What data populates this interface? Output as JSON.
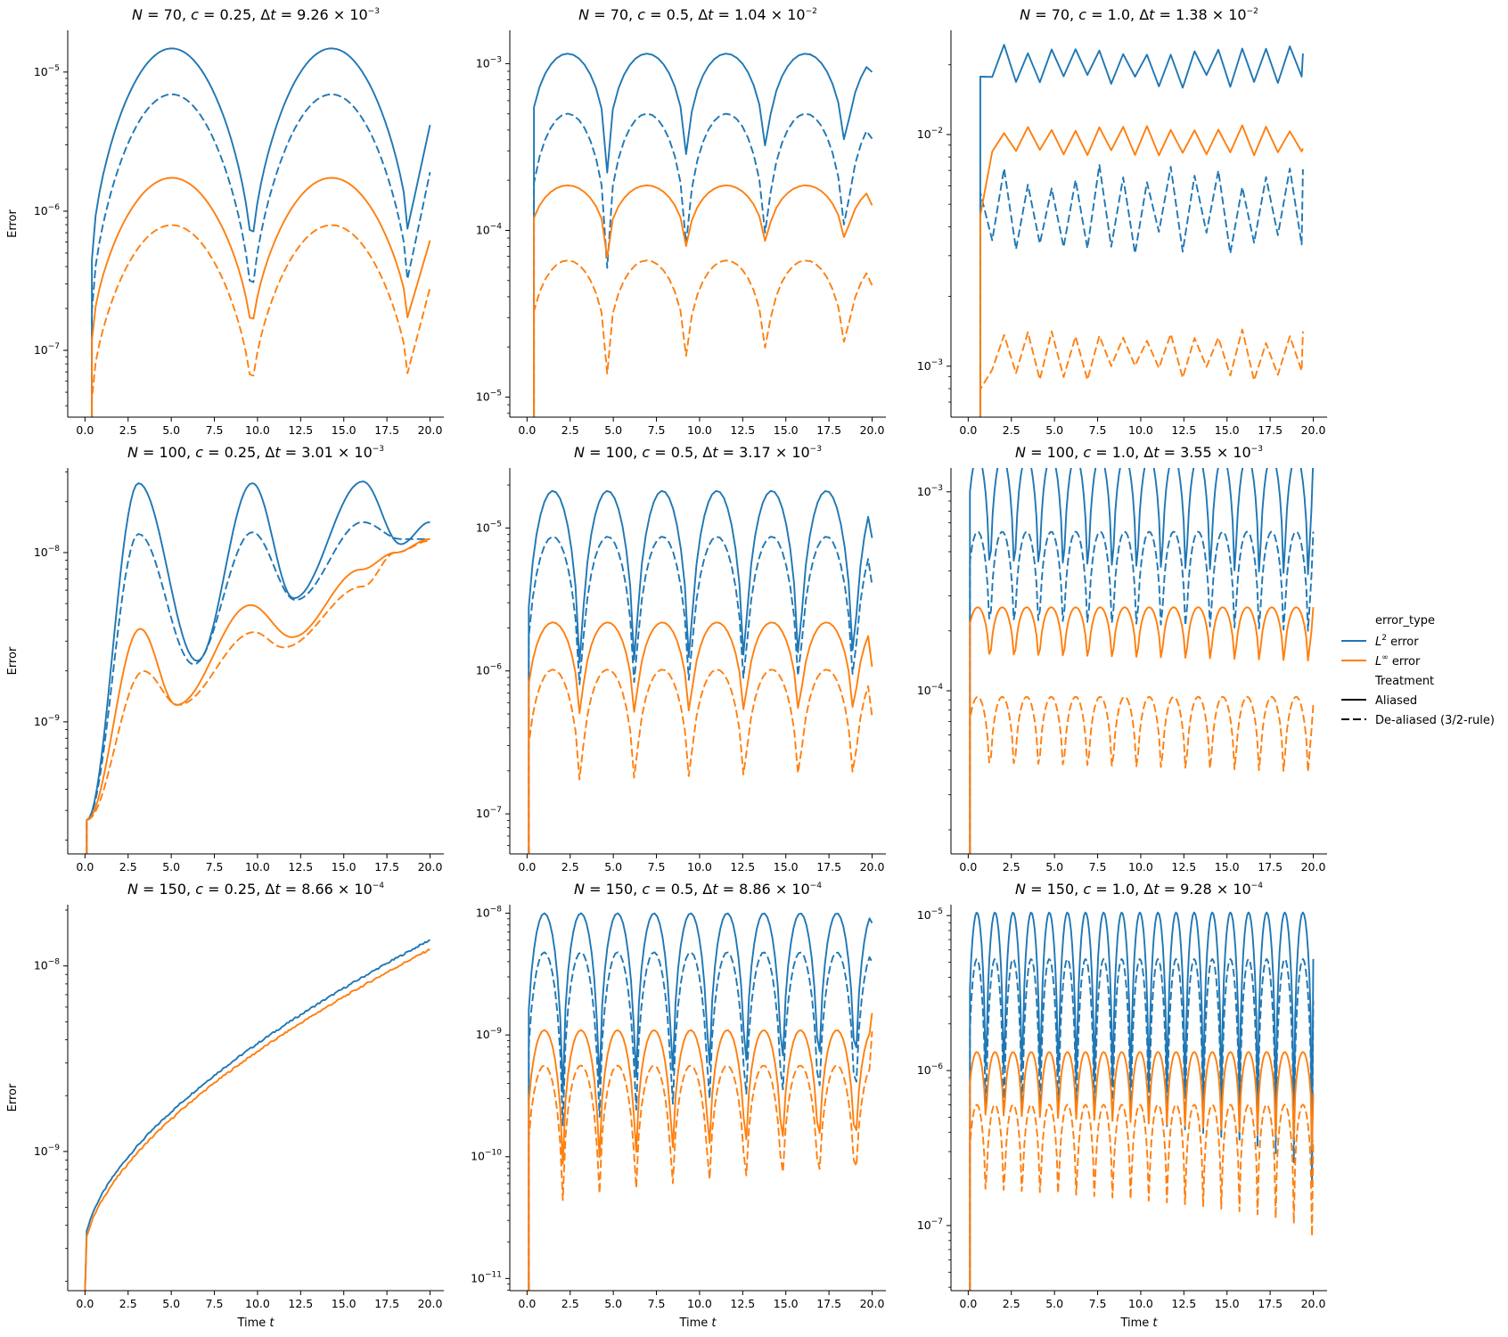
{
  "colors": {
    "l2": "#1f77b4",
    "linf": "#ff7f0e",
    "axis": "#000000"
  },
  "legend": {
    "hue_title": "error_type",
    "hue_entries": [
      {
        "label": "L",
        "sup": "2",
        "rest": " error",
        "color": "#1f77b4"
      },
      {
        "label": "L",
        "sup": "∞",
        "rest": " error",
        "color": "#ff7f0e"
      }
    ],
    "style_title": "Treatment",
    "style_entries": [
      {
        "label": "Aliased",
        "dash": "solid"
      },
      {
        "label": "De-aliased (3/2-rule)",
        "dash": "dashed"
      }
    ]
  },
  "chart_data": [
    {
      "type": "line",
      "title": {
        "N": "70",
        "c": "0.25",
        "mant": "9.26",
        "exp": "−3"
      },
      "ylabel": "Error",
      "xlabel": "",
      "xlim": [
        -1,
        20.8
      ],
      "ylog": [
        -7.48,
        -4.7
      ],
      "yticks": [
        -7,
        -6,
        -5
      ],
      "xticks": [
        0,
        2.5,
        5,
        7.5,
        10,
        12.5,
        15,
        17.5,
        20
      ],
      "mode": "arch",
      "t0": 0.4,
      "period": 9.26,
      "dip": [
        9.2,
        18.3
      ],
      "series": [
        {
          "name": "L2 error",
          "treatment": "Aliased",
          "lpeak": -4.83,
          "ldip": -6.35,
          "lend": -5.38
        },
        {
          "name": "L2 error",
          "treatment": "De-aliased (3/2-rule)",
          "lpeak": -5.16,
          "ldip": -6.72,
          "lend": -5.72
        },
        {
          "name": "Linf error",
          "treatment": "Aliased",
          "lpeak": -5.76,
          "ldip": -6.93,
          "lend": -6.21
        },
        {
          "name": "Linf error",
          "treatment": "De-aliased (3/2-rule)",
          "lpeak": -6.1,
          "ldip": -7.35,
          "lend": -6.55
        }
      ]
    },
    {
      "type": "line",
      "title": {
        "N": "70",
        "c": "0.5",
        "mant": "1.04",
        "exp": "−2"
      },
      "ylabel": "",
      "xlabel": "",
      "xlim": [
        -1,
        20.8
      ],
      "ylog": [
        -5.12,
        -2.8
      ],
      "yticks": [
        -5,
        -4,
        -3
      ],
      "xticks": [
        0,
        2.5,
        5,
        7.5,
        10,
        12.5,
        15,
        17.5,
        20
      ],
      "mode": "osc",
      "t0": 0.4,
      "period": 4.6,
      "phase": 2.35,
      "series": [
        {
          "name": "L2 error",
          "treatment": "Aliased",
          "hi": -2.94,
          "lo": -3.75,
          "lend": -3.05
        },
        {
          "name": "L2 error",
          "treatment": "De-aliased (3/2-rule)",
          "hi": -3.3,
          "lo": -4.35,
          "lend": -3.45
        },
        {
          "name": "Linf error",
          "treatment": "Aliased",
          "hi": -3.73,
          "lo": -4.22,
          "lend": -3.85
        },
        {
          "name": "Linf error",
          "treatment": "De-aliased (3/2-rule)",
          "hi": -4.18,
          "lo": -4.95,
          "lend": -4.33
        }
      ]
    },
    {
      "type": "line",
      "title": {
        "N": "70",
        "c": "1.0",
        "mant": "1.38",
        "exp": "−2"
      },
      "ylabel": "",
      "xlabel": "",
      "xlim": [
        -1,
        20.8
      ],
      "ylog": [
        -3.22,
        -1.55
      ],
      "yticks": [
        -3,
        -2
      ],
      "xticks": [
        0,
        2.5,
        5,
        7.5,
        10,
        12.5,
        15,
        17.5,
        20
      ],
      "mode": "zig",
      "t0": 0.7,
      "step": 0.69,
      "series": [
        {
          "name": "L2 error",
          "treatment": "Aliased",
          "base": -1.7,
          "amp": 0.07,
          "start": -1.75,
          "end": -1.65
        },
        {
          "name": "L2 error",
          "treatment": "De-aliased (3/2-rule)",
          "base": -2.32,
          "amp": 0.14,
          "start": -2.25,
          "end": -2.15
        },
        {
          "name": "Linf error",
          "treatment": "Aliased",
          "base": -2.03,
          "amp": 0.05,
          "start": -2.35,
          "end": -2.06
        },
        {
          "name": "Linf error",
          "treatment": "De-aliased (3/2-rule)",
          "base": -2.95,
          "amp": 0.08,
          "start": -3.1,
          "end": -2.85
        }
      ]
    },
    {
      "type": "line",
      "title": {
        "N": "100",
        "c": "0.25",
        "mant": "3.01",
        "exp": "−3"
      },
      "ylabel": "Error",
      "xlabel": "",
      "xlim": [
        -1,
        20.8
      ],
      "ylog": [
        -9.78,
        -7.5
      ],
      "yticks": [
        -9,
        -8
      ],
      "xticks": [
        0,
        2.5,
        5,
        7.5,
        10,
        12.5,
        15,
        17.5,
        20
      ],
      "mode": "grow",
      "series": [
        {
          "name": "L2 error",
          "treatment": "Aliased",
          "peaks": [
            [
              3.1,
              -7.59
            ],
            [
              9.7,
              -7.59
            ],
            [
              16.1,
              -7.58
            ]
          ],
          "dips": [
            [
              6.5,
              -8.64
            ],
            [
              12.1,
              -8.27
            ],
            [
              18.3,
              -7.95
            ]
          ],
          "lend": -7.82
        },
        {
          "name": "L2 error",
          "treatment": "De-aliased (3/2-rule)",
          "peaks": [
            [
              3.1,
              -7.89
            ],
            [
              9.7,
              -7.88
            ],
            [
              16.1,
              -7.82
            ]
          ],
          "dips": [
            [
              6.3,
              -8.66
            ],
            [
              12.2,
              -8.28
            ],
            [
              18.3,
              -7.92
            ]
          ],
          "lend": -7.92
        },
        {
          "name": "Linf error",
          "treatment": "Aliased",
          "peaks": [
            [
              3.2,
              -8.45
            ],
            [
              9.6,
              -8.31
            ],
            [
              16.0,
              -8.1
            ]
          ],
          "dips": [
            [
              5.3,
              -8.9
            ],
            [
              12.0,
              -8.5
            ],
            [
              18.0,
              -8.0
            ]
          ],
          "lend": -7.92
        },
        {
          "name": "Linf error",
          "treatment": "De-aliased (3/2-rule)",
          "peaks": [
            [
              3.4,
              -8.7
            ],
            [
              9.8,
              -8.47
            ],
            [
              16.1,
              -8.2
            ]
          ],
          "dips": [
            [
              5.4,
              -8.9
            ],
            [
              11.5,
              -8.56
            ],
            [
              18.0,
              -8.0
            ]
          ],
          "lend": -7.93
        }
      ]
    },
    {
      "type": "line",
      "title": {
        "N": "100",
        "c": "0.5",
        "mant": "3.17",
        "exp": "−3"
      },
      "ylabel": "",
      "xlabel": "",
      "xlim": [
        -1,
        20.8
      ],
      "ylog": [
        -7.28,
        -4.58
      ],
      "yticks": [
        -7,
        -6,
        -5
      ],
      "xticks": [
        0,
        2.5,
        5,
        7.5,
        10,
        12.5,
        15,
        17.5,
        20
      ],
      "mode": "osc",
      "t0": 0.1,
      "period": 3.17,
      "phase": 1.5,
      "series": [
        {
          "name": "L2 error",
          "treatment": "Aliased",
          "hi": -4.74,
          "lo": -6.55,
          "lend": -5.07
        },
        {
          "name": "L2 error",
          "treatment": "De-aliased (3/2-rule)",
          "hi": -5.06,
          "lo": -6.62,
          "lend": -5.4
        },
        {
          "name": "Linf error",
          "treatment": "Aliased",
          "hi": -5.66,
          "lo": -6.62,
          "lend": -5.97
        },
        {
          "name": "Linf error",
          "treatment": "De-aliased (3/2-rule)",
          "hi": -5.99,
          "lo": -7.15,
          "lend": -6.32
        }
      ]
    },
    {
      "type": "line",
      "title": {
        "N": "100",
        "c": "1.0",
        "mant": "3.55",
        "exp": "−3"
      },
      "ylabel": "",
      "xlabel": "",
      "xlim": [
        -1,
        20.8
      ],
      "ylog": [
        -4.82,
        -2.88
      ],
      "yticks": [
        -4,
        -3
      ],
      "xticks": [
        0,
        2.5,
        5,
        7.5,
        10,
        12.5,
        15,
        17.5,
        20
      ],
      "mode": "osc",
      "t0": 0.1,
      "period": 1.42,
      "phase": 0.55,
      "series": [
        {
          "name": "L2 error",
          "treatment": "Aliased",
          "hi": -2.82,
          "lo": -3.75,
          "lend": -2.82
        },
        {
          "name": "L2 error",
          "treatment": "De-aliased (3/2-rule)",
          "hi": -3.2,
          "lo": -3.98,
          "lend": -3.2
        },
        {
          "name": "Linf error",
          "treatment": "Aliased",
          "hi": -3.58,
          "lo": -4.0,
          "lend": -3.58
        },
        {
          "name": "Linf error",
          "treatment": "De-aliased (3/2-rule)",
          "hi": -4.03,
          "lo": -4.62,
          "lend": -4.07
        }
      ]
    },
    {
      "type": "line",
      "title": {
        "N": "150",
        "c": "0.25",
        "mant": "8.66",
        "exp": "−4"
      },
      "ylabel": "Error",
      "xlabel": "Time t",
      "xlim": [
        -1,
        20.8
      ],
      "ylog": [
        -9.75,
        -7.67
      ],
      "yticks": [
        -9,
        -8
      ],
      "xticks": [
        0,
        2.5,
        5,
        7.5,
        10,
        12.5,
        15,
        17.5,
        20
      ],
      "mode": "sqrt",
      "series": [
        {
          "name": "L2 error",
          "treatment": "Aliased",
          "a": -9.7,
          "b": -9.5,
          "c": -7.86
        },
        {
          "name": "Linf error",
          "treatment": "Aliased",
          "a": -9.72,
          "b": -9.53,
          "c": -7.91
        }
      ]
    },
    {
      "type": "line",
      "title": {
        "N": "150",
        "c": "0.5",
        "mant": "8.86",
        "exp": "−4"
      },
      "ylabel": "",
      "xlabel": "Time t",
      "xlim": [
        -1,
        20.8
      ],
      "ylog": [
        -11.1,
        -7.93
      ],
      "yticks": [
        -11,
        -10,
        -9,
        -8
      ],
      "xticks": [
        0,
        2.5,
        5,
        7.5,
        10,
        12.5,
        15,
        17.5,
        20
      ],
      "mode": "osc",
      "t0": 0.1,
      "period": 2.12,
      "phase": 1.0,
      "series": [
        {
          "name": "L2 error",
          "treatment": "Aliased",
          "hi": -8.0,
          "lo": -10.0,
          "lend": -8.08
        },
        {
          "name": "L2 error",
          "treatment": "De-aliased (3/2-rule)",
          "hi": -8.32,
          "lo": -10.25,
          "lend": -8.4
        },
        {
          "name": "Linf error",
          "treatment": "Aliased",
          "hi": -8.96,
          "lo": -10.45,
          "lend": -8.82
        },
        {
          "name": "Linf error",
          "treatment": "De-aliased (3/2-rule)",
          "hi": -9.25,
          "lo": -10.75,
          "lend": -8.97
        }
      ]
    },
    {
      "type": "line",
      "title": {
        "N": "150",
        "c": "1.0",
        "mant": "9.28",
        "exp": "−4"
      },
      "ylabel": "",
      "xlabel": "Time t",
      "xlim": [
        -1,
        20.8
      ],
      "ylog": [
        -7.42,
        -4.93
      ],
      "yticks": [
        -7,
        -6,
        -5
      ],
      "xticks": [
        0,
        2.5,
        5,
        7.5,
        10,
        12.5,
        15,
        17.5,
        20
      ],
      "mode": "osc",
      "t0": 0.1,
      "period": 1.05,
      "phase": 0.5,
      "series": [
        {
          "name": "L2 error",
          "treatment": "Aliased",
          "hi": -4.98,
          "lo": -6.62,
          "lend": -5.28
        },
        {
          "name": "L2 error",
          "treatment": "De-aliased (3/2-rule)",
          "hi": -5.28,
          "lo": -6.82,
          "lend": -5.55
        },
        {
          "name": "Linf error",
          "treatment": "Aliased",
          "hi": -5.88,
          "lo": -6.55,
          "lend": -6.15
        },
        {
          "name": "Linf error",
          "treatment": "De-aliased (3/2-rule)",
          "hi": -6.22,
          "lo": -7.12,
          "lend": -6.45
        }
      ]
    }
  ]
}
